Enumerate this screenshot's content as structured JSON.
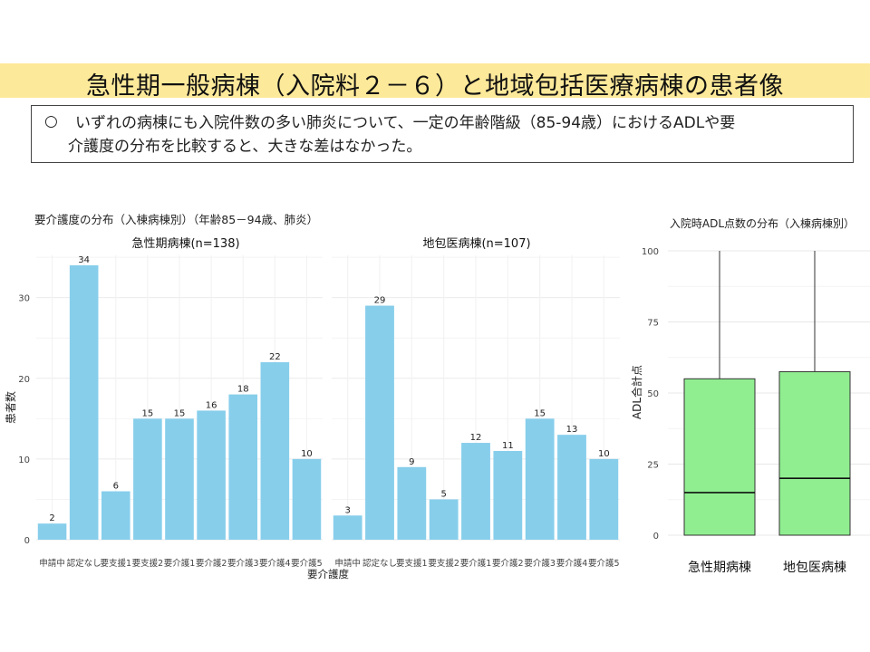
{
  "header": {
    "title": "急性期一般病棟（入院料２－６）と地域包括医療病棟の患者像"
  },
  "note": {
    "bullet": "○",
    "line1": "いずれの病棟にも入院件数の多い肺炎について、一定の年齢階級（85-94歳）におけるADLや要",
    "line2": "介護度の分布を比較すると、大きな差はなかった。"
  },
  "chart_data": [
    {
      "type": "bar",
      "title": "要介護度の分布（入棟病棟別）（年齢85－94歳、肺炎）",
      "xlabel": "要介護度",
      "ylabel": "患者数",
      "ylim": [
        0,
        35
      ],
      "yticks": [
        0,
        10,
        20,
        30
      ],
      "categories": [
        "申請中",
        "認定なし",
        "要支援1",
        "要支援2",
        "要介護1",
        "要介護2",
        "要介護3",
        "要介護4",
        "要介護5"
      ],
      "bar_color": "#87ceeb",
      "facets": [
        {
          "name": "急性期病棟(n=138)",
          "values": [
            2,
            34,
            6,
            15,
            15,
            16,
            18,
            22,
            10
          ]
        },
        {
          "name": "地包医病棟(n=107)",
          "values": [
            3,
            29,
            9,
            5,
            12,
            11,
            15,
            13,
            10
          ]
        }
      ]
    },
    {
      "type": "box",
      "title": "入院時ADL点数の分布（入棟病棟別）",
      "xlabel": "",
      "ylabel": "ADL合計点",
      "ylim": [
        0,
        100
      ],
      "yticks": [
        0,
        25,
        50,
        75,
        100
      ],
      "box_color": "#90ee90",
      "groups": [
        {
          "name": "急性期病棟",
          "min": 0,
          "q1": 0,
          "median": 15,
          "q3": 55,
          "max": 100
        },
        {
          "name": "地包医病棟",
          "min": 0,
          "q1": 0,
          "median": 20,
          "q3": 57.5,
          "max": 100
        }
      ]
    }
  ]
}
